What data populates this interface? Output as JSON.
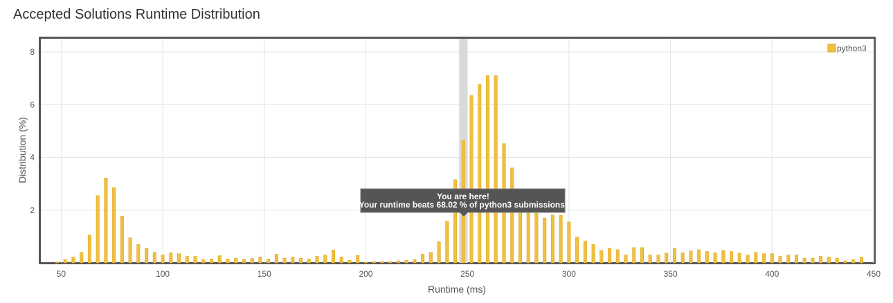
{
  "page": {
    "title": "Accepted Solutions Runtime Distribution"
  },
  "chart_data": {
    "type": "bar",
    "xlabel": "Runtime (ms)",
    "ylabel": "Distribution (%)",
    "xlim": [
      40,
      450
    ],
    "ylim": [
      0,
      8.5
    ],
    "xticks": [
      50,
      100,
      150,
      200,
      250,
      300,
      350,
      400,
      450
    ],
    "yticks": [
      2,
      4,
      6,
      8
    ],
    "grid": true,
    "legend_position": "top-right",
    "bar_color": "#f0c042",
    "bar_stroke": "#e0a81c",
    "highlight": {
      "x": 248,
      "color": "#d9d9d9"
    },
    "tooltip": {
      "line1": "You are here!",
      "line2": "Your runtime beats 68.02 % of python3 submissions."
    },
    "series": [
      {
        "name": "python3",
        "x": [
          48,
          52,
          56,
          60,
          64,
          68,
          72,
          76,
          80,
          84,
          88,
          92,
          96,
          100,
          104,
          108,
          112,
          116,
          120,
          124,
          128,
          132,
          136,
          140,
          144,
          148,
          152,
          156,
          160,
          164,
          168,
          172,
          176,
          180,
          184,
          188,
          192,
          196,
          200,
          204,
          208,
          212,
          216,
          220,
          224,
          228,
          232,
          236,
          240,
          244,
          248,
          252,
          256,
          260,
          264,
          268,
          272,
          276,
          280,
          284,
          288,
          292,
          296,
          300,
          304,
          308,
          312,
          316,
          320,
          324,
          328,
          332,
          336,
          340,
          344,
          348,
          352,
          356,
          360,
          364,
          368,
          372,
          376,
          380,
          384,
          388,
          392,
          396,
          400,
          404,
          408,
          412,
          416,
          420,
          424,
          428,
          432,
          436,
          440,
          444
        ],
        "values": [
          0.03,
          0.12,
          0.22,
          0.4,
          1.05,
          2.55,
          3.22,
          2.85,
          1.78,
          0.95,
          0.7,
          0.55,
          0.4,
          0.3,
          0.38,
          0.35,
          0.25,
          0.25,
          0.12,
          0.15,
          0.27,
          0.15,
          0.18,
          0.13,
          0.17,
          0.22,
          0.15,
          0.33,
          0.18,
          0.22,
          0.18,
          0.15,
          0.25,
          0.3,
          0.48,
          0.22,
          0.1,
          0.28,
          0.03,
          0.05,
          0.05,
          0.05,
          0.08,
          0.1,
          0.12,
          0.33,
          0.4,
          0.8,
          1.58,
          3.15,
          4.65,
          6.35,
          6.78,
          7.1,
          7.1,
          4.52,
          3.6,
          2.6,
          2.1,
          1.88,
          1.7,
          1.82,
          1.8,
          1.55,
          0.98,
          0.82,
          0.7,
          0.47,
          0.55,
          0.5,
          0.3,
          0.58,
          0.58,
          0.3,
          0.3,
          0.37,
          0.55,
          0.38,
          0.45,
          0.5,
          0.43,
          0.38,
          0.47,
          0.43,
          0.37,
          0.3,
          0.4,
          0.35,
          0.35,
          0.25,
          0.3,
          0.3,
          0.18,
          0.18,
          0.25,
          0.22,
          0.18,
          0.08,
          0.12,
          0.22
        ]
      }
    ]
  }
}
